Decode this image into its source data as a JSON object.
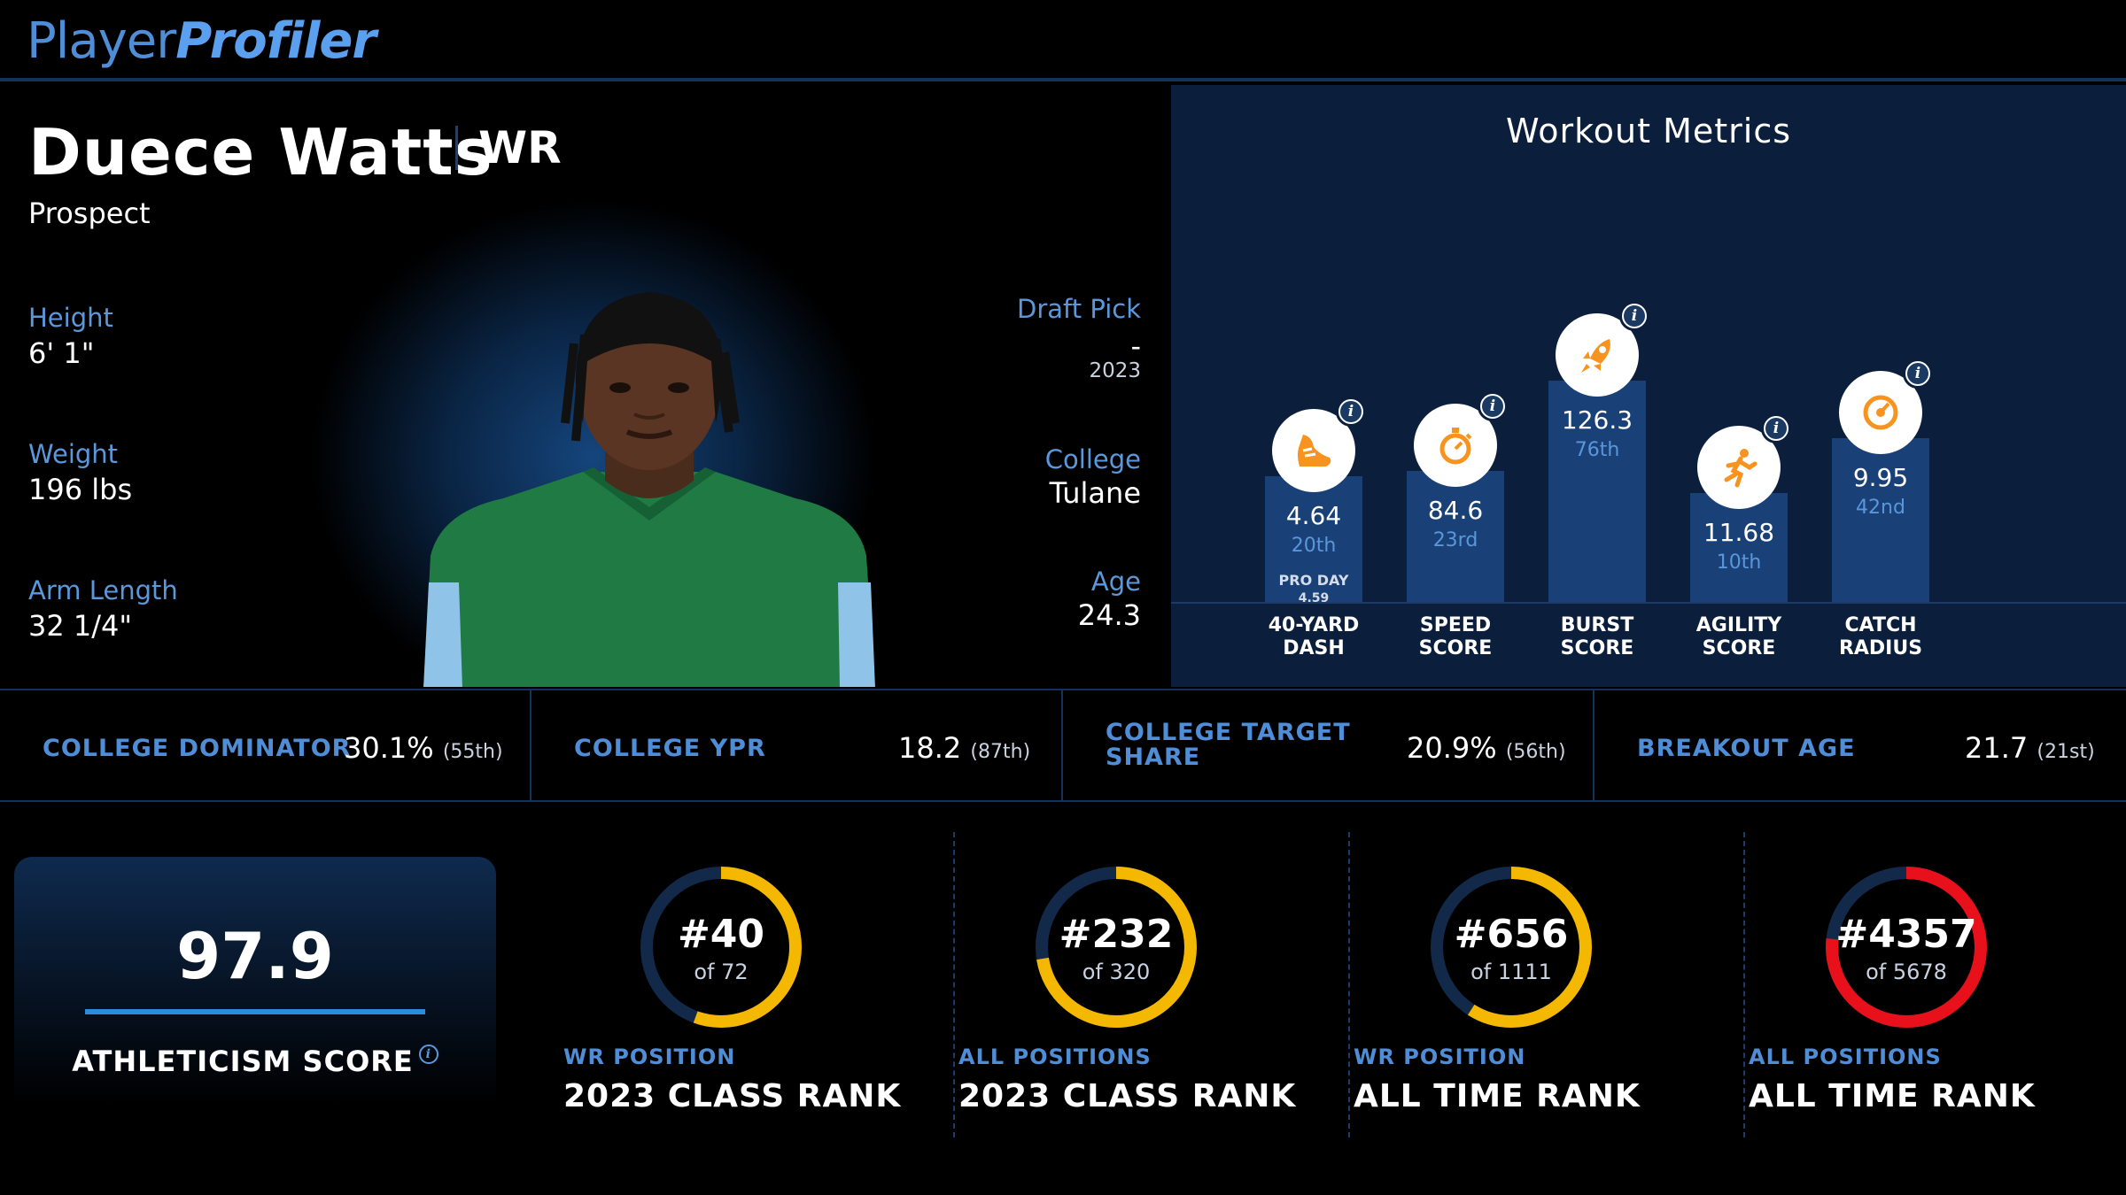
{
  "brand": {
    "part1": "Player",
    "part2": "Profiler"
  },
  "player": {
    "name": "Duece Watts",
    "position": "WR",
    "status": "Prospect"
  },
  "bio": {
    "height_label": "Height",
    "height": "6' 1\"",
    "weight_label": "Weight",
    "weight": "196 lbs",
    "arm_label": "Arm Length",
    "arm": "32 1/4\"",
    "draft_label": "Draft Pick",
    "draft": "-",
    "draft_year": "2023",
    "college_label": "College",
    "college": "Tulane",
    "age_label": "Age",
    "age": "24.3"
  },
  "workout": {
    "title": "Workout Metrics",
    "metrics": [
      {
        "label1": "40-YARD",
        "label2": "DASH",
        "value": "4.64",
        "rank": "20th",
        "extra_label": "PRO DAY",
        "extra_value": "4.59",
        "icon": "shoe-icon",
        "level": 0.2
      },
      {
        "label1": "SPEED",
        "label2": "SCORE",
        "value": "84.6",
        "rank": "23rd",
        "icon": "stopwatch-icon",
        "level": 0.23
      },
      {
        "label1": "BURST",
        "label2": "SCORE",
        "value": "126.3",
        "rank": "76th",
        "icon": "rocket-icon",
        "level": 0.76
      },
      {
        "label1": "AGILITY",
        "label2": "SCORE",
        "value": "11.68",
        "rank": "10th",
        "icon": "runner-icon",
        "level": 0.1
      },
      {
        "label1": "CATCH",
        "label2": "RADIUS",
        "value": "9.95",
        "rank": "42nd",
        "icon": "target-icon",
        "level": 0.42
      }
    ]
  },
  "college_stats": [
    {
      "label1": "COLLEGE DOMINATOR",
      "label2": "",
      "value": "30.1%",
      "rank": "(55th)"
    },
    {
      "label1": "COLLEGE YPR",
      "label2": "",
      "value": "18.2",
      "rank": "(87th)"
    },
    {
      "label1": "COLLEGE TARGET",
      "label2": "SHARE",
      "value": "20.9%",
      "rank": "(56th)"
    },
    {
      "label1": "BREAKOUT AGE",
      "label2": "",
      "value": "21.7",
      "rank": "(21st)"
    }
  ],
  "athleticism": {
    "value": "97.9",
    "label": "ATHLETICISM SCORE",
    "info_icon": "i"
  },
  "ranks": [
    {
      "number": "#40",
      "of": "of 72",
      "sub": "WR POSITION",
      "main": "2023 CLASS RANK",
      "rank": 40,
      "total": 72,
      "color": "#f5b800"
    },
    {
      "number": "#232",
      "of": "of 320",
      "sub": "ALL POSITIONS",
      "main": "2023 CLASS RANK",
      "rank": 232,
      "total": 320,
      "color": "#f5b800"
    },
    {
      "number": "#656",
      "of": "of 1111",
      "sub": "WR POSITION",
      "main": "ALL TIME RANK",
      "rank": 656,
      "total": 1111,
      "color": "#f5b800"
    },
    {
      "number": "#4357",
      "of": "of 5678",
      "sub": "ALL POSITIONS",
      "main": "ALL TIME RANK",
      "rank": 4357,
      "total": 5678,
      "color": "#e8101a"
    }
  ],
  "colors": {
    "accent": "#4f8ed6",
    "bar": "#1a4177",
    "ring_track": "#12294a",
    "gold": "#f5b800",
    "red": "#e8101a",
    "icon_orange": "#f7931e"
  }
}
